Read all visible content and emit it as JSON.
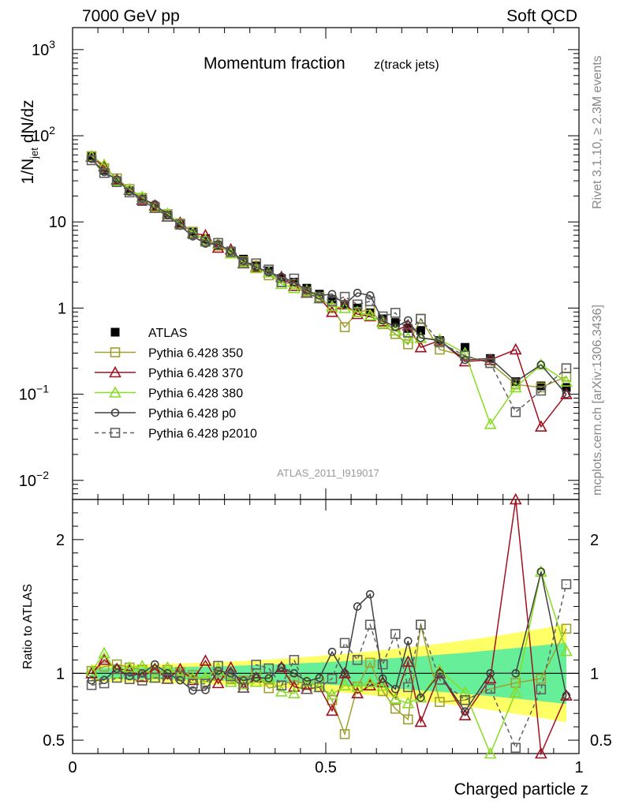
{
  "header": {
    "left": "7000 GeV pp",
    "right": "Soft QCD"
  },
  "side_labels": {
    "rivet": "Rivet 3.1.10, ≥ 2.3M events",
    "mcplots": "mcplots.cern.ch [arXiv:1306.3436]"
  },
  "chart_data": [
    {
      "type": "line",
      "title": "Momentum fraction",
      "title_sub": "z(track jets)",
      "xlabel": "Charged particle z",
      "ylabel": "1/N_jet dN/dz",
      "analysis_tag": "ATLAS_2011_I919017",
      "xlim": [
        0,
        1
      ],
      "ylim": [
        0.006,
        1800
      ],
      "yscale": "log",
      "xticks": [
        "0",
        "0.5",
        "1"
      ],
      "yticks": [
        "10^-2",
        "10^-1",
        "1",
        "10",
        "10^2",
        "10^3"
      ],
      "legend_position": "lower-left",
      "x": [
        0.0375,
        0.0625,
        0.0875,
        0.1125,
        0.1375,
        0.1625,
        0.1875,
        0.2125,
        0.2375,
        0.2625,
        0.2875,
        0.3125,
        0.3375,
        0.3625,
        0.3875,
        0.4125,
        0.4375,
        0.4625,
        0.4875,
        0.5125,
        0.5375,
        0.5625,
        0.5875,
        0.6125,
        0.6375,
        0.6625,
        0.6875,
        0.725,
        0.775,
        0.825,
        0.875,
        0.925,
        0.975
      ],
      "series": [
        {
          "name": "ATLAS",
          "color": "#000000",
          "marker": "filled-square",
          "values": [
            57,
            40,
            30,
            23,
            18.5,
            15,
            12,
            9.5,
            7.8,
            6.4,
            5.4,
            4.6,
            3.7,
            3.1,
            2.7,
            2.2,
            2.0,
            1.7,
            1.45,
            1.25,
            1.1,
            1.0,
            0.88,
            0.75,
            0.68,
            0.58,
            0.55,
            0.42,
            0.35,
            0.26,
            0.14,
            0.125,
            0.12
          ]
        },
        {
          "name": "Pythia 6.428 350",
          "color": "#a0a030",
          "marker": "open-square",
          "values": [
            58,
            42,
            32,
            24,
            19,
            15,
            12.3,
            9.6,
            7.7,
            6.0,
            5.3,
            4.4,
            3.5,
            3.1,
            2.4,
            2.0,
            1.9,
            1.55,
            1.35,
            1.0,
            0.6,
            0.9,
            0.95,
            0.65,
            0.5,
            0.38,
            0.75,
            0.33,
            0.28,
            0.23,
            0.13,
            0.12,
            0.16
          ]
        },
        {
          "name": "Pythia 6.428 370",
          "color": "#a01020",
          "marker": "open-triangle",
          "values": [
            57,
            44,
            31,
            23.5,
            18,
            15.5,
            11.5,
            9.8,
            7.4,
            7.0,
            5.0,
            4.8,
            3.3,
            3.0,
            2.6,
            2.3,
            1.8,
            1.5,
            1.3,
            0.9,
            1.1,
            0.85,
            0.8,
            0.7,
            0.55,
            0.63,
            0.35,
            0.42,
            0.24,
            0.25,
            0.33,
            0.042,
            0.1
          ]
        },
        {
          "name": "Pythia 6.428 380",
          "color": "#88dd22",
          "marker": "open-triangle",
          "values": [
            58,
            46,
            30,
            24,
            19.5,
            14.5,
            12.5,
            9.4,
            7.5,
            6.2,
            5.6,
            4.3,
            3.4,
            2.9,
            2.6,
            1.9,
            1.7,
            1.6,
            1.3,
            1.05,
            1.0,
            0.9,
            0.82,
            0.68,
            0.55,
            0.45,
            0.45,
            0.43,
            0.3,
            0.045,
            0.12,
            0.22,
            0.14
          ]
        },
        {
          "name": "Pythia 6.428 p0",
          "color": "#404040",
          "marker": "open-circle",
          "values": [
            54,
            38,
            31,
            22.5,
            18.5,
            16,
            12,
            9.0,
            6.8,
            5.6,
            5.5,
            4.6,
            3.5,
            3.0,
            2.6,
            2.3,
            2.0,
            1.6,
            1.4,
            1.45,
            1.1,
            1.5,
            1.4,
            0.72,
            0.6,
            0.72,
            0.45,
            0.42,
            0.25,
            0.26,
            0.14,
            0.22,
            0.1
          ]
        },
        {
          "name": "Pythia 6.428 p2010",
          "color": "#606060",
          "marker": "open-square",
          "dashed": true,
          "values": [
            52,
            37,
            29,
            22,
            17.5,
            14.5,
            11.5,
            9.3,
            7.2,
            5.9,
            5.7,
            4.5,
            3.3,
            3.3,
            2.8,
            2.0,
            2.2,
            1.5,
            1.3,
            1.2,
            1.35,
            1.1,
            1.2,
            0.8,
            0.88,
            0.52,
            0.75,
            0.4,
            0.28,
            0.23,
            0.062,
            0.11,
            0.2
          ]
        }
      ]
    },
    {
      "type": "line",
      "ylabel": "Ratio to ATLAS",
      "xlabel": "Charged particle z",
      "xlim": [
        0,
        1
      ],
      "ylim": [
        0.4,
        2.3
      ],
      "yticks": [
        "0.5",
        "1",
        "2"
      ],
      "reference": 1.0,
      "uncertainty_bands": {
        "inner_color": "#66ee99",
        "outer_color": "#ffff66"
      },
      "series_ratio_note": "ratios of each MC series to ATLAS"
    }
  ],
  "legend": [
    {
      "label": "ATLAS"
    },
    {
      "label": "Pythia 6.428 350"
    },
    {
      "label": "Pythia 6.428 370"
    },
    {
      "label": "Pythia 6.428 380"
    },
    {
      "label": "Pythia 6.428 p0"
    },
    {
      "label": "Pythia 6.428 p2010"
    }
  ]
}
